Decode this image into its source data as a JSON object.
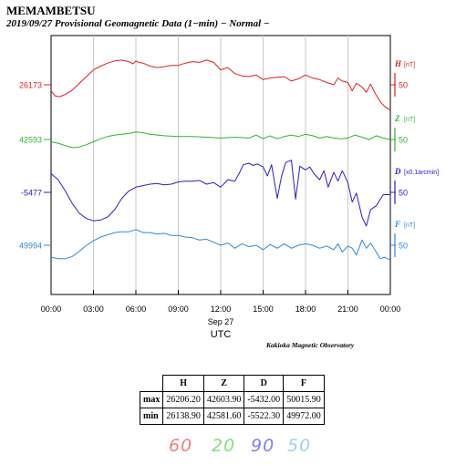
{
  "header": {
    "station": "MEMAMBETSU",
    "subtitle": "2019/09/27  Provisional Geomagnetic Data (1−min)  − Normal −"
  },
  "chart_data": {
    "type": "line",
    "x_ticks": [
      "00:00",
      "03:00",
      "06:00",
      "09:00",
      "12:00",
      "15:00",
      "18:00",
      "21:00",
      "00:00"
    ],
    "date_label": "Sep 27",
    "xlabel": "UTC",
    "xlim_hours": [
      0,
      24
    ],
    "series": [
      {
        "id": "H",
        "name": "H",
        "unit": "[nT]",
        "scale": "50",
        "baseline": "26173",
        "color": "#e02020",
        "x": [
          0,
          0.3,
          0.6,
          1,
          1.5,
          2,
          2.5,
          3,
          3.5,
          4,
          4.5,
          5,
          5.5,
          5.8,
          6,
          6.2,
          6.5,
          7,
          7.5,
          8,
          8.5,
          9,
          9.5,
          10,
          10.5,
          11,
          11.5,
          12,
          12.5,
          13,
          13.5,
          14,
          14.5,
          15,
          15.5,
          16,
          16.5,
          17,
          17.5,
          18,
          18.5,
          19,
          19.5,
          20,
          20.3,
          20.6,
          21,
          21.3,
          21.6,
          22,
          22.3,
          22.6,
          23,
          23.3,
          23.6,
          24
        ],
        "y": [
          26165,
          26158,
          26157,
          26160,
          26166,
          26175,
          26184,
          26193,
          26198,
          26202,
          26205,
          26206,
          26204,
          26201,
          26205,
          26203,
          26202,
          26198,
          26196,
          26197,
          26199,
          26199,
          26202,
          26204,
          26203,
          26206,
          26203,
          26193,
          26196,
          26188,
          26185,
          26184,
          26186,
          26180,
          26182,
          26183,
          26184,
          26178,
          26181,
          26186,
          26182,
          26180,
          26176,
          26173,
          26182,
          26178,
          26176,
          26165,
          26175,
          26170,
          26163,
          26174,
          26159,
          26150,
          26144,
          26139
        ]
      },
      {
        "id": "Z",
        "name": "Z",
        "unit": "[nT]",
        "scale": "50",
        "baseline": "42593",
        "color": "#2db52d",
        "x": [
          0,
          0.5,
          1,
          1.5,
          2,
          2.5,
          3,
          3.5,
          4,
          4.5,
          5,
          5.5,
          6,
          6.5,
          7,
          7.5,
          8,
          9,
          10,
          11,
          12,
          13,
          14,
          14.5,
          15,
          15.5,
          16,
          16.5,
          17,
          17.5,
          18,
          18.5,
          19,
          19.5,
          20,
          20.5,
          21,
          21.5,
          22,
          22.5,
          23,
          23.5,
          24
        ],
        "y": [
          42590,
          42588,
          42585,
          42582,
          42583,
          42586,
          42590,
          42594,
          42597,
          42599,
          42600,
          42601,
          42603,
          42602,
          42600,
          42599,
          42598,
          42597,
          42597,
          42596,
          42595,
          42596,
          42595,
          42599,
          42594,
          42598,
          42594,
          42597,
          42599,
          42597,
          42600,
          42598,
          42595,
          42597,
          42595,
          42594,
          42595,
          42599,
          42596,
          42593,
          42598,
          42595,
          42593
        ]
      },
      {
        "id": "D",
        "name": "D",
        "unit": "[x0.1arcmin]",
        "scale": "50",
        "baseline": "-5477",
        "color": "#2a20c0",
        "x": [
          0,
          0.5,
          1,
          1.5,
          2,
          2.5,
          3,
          3.5,
          4,
          4.5,
          5,
          5.5,
          6,
          6.5,
          7,
          7.5,
          8,
          8.5,
          9,
          9.5,
          10,
          10.5,
          11,
          11.5,
          12,
          12.5,
          13,
          13.3,
          13.6,
          14,
          14.3,
          14.6,
          15,
          15.3,
          15.6,
          16,
          16.3,
          16.6,
          17,
          17.3,
          17.6,
          18,
          18.3,
          18.6,
          19,
          19.3,
          19.6,
          20,
          20.3,
          20.6,
          21,
          21.3,
          21.6,
          22,
          22.3,
          22.6,
          23,
          23.5,
          24
        ],
        "y": [
          -5452,
          -5460,
          -5475,
          -5492,
          -5505,
          -5512,
          -5515,
          -5514,
          -5510,
          -5500,
          -5485,
          -5475,
          -5470,
          -5468,
          -5466,
          -5465,
          -5467,
          -5466,
          -5463,
          -5462,
          -5462,
          -5461,
          -5466,
          -5464,
          -5470,
          -5460,
          -5462,
          -5452,
          -5440,
          -5438,
          -5441,
          -5439,
          -5443,
          -5455,
          -5440,
          -5485,
          -5456,
          -5437,
          -5434,
          -5486,
          -5442,
          -5447,
          -5443,
          -5452,
          -5460,
          -5448,
          -5470,
          -5450,
          -5462,
          -5448,
          -5464,
          -5490,
          -5478,
          -5510,
          -5522,
          -5500,
          -5495,
          -5480,
          -5480
        ]
      },
      {
        "id": "F",
        "name": "F",
        "unit": "[nT]",
        "scale": "50",
        "baseline": "49994",
        "color": "#2a8ad8",
        "x": [
          0,
          0.5,
          1,
          1.5,
          2,
          2.5,
          3,
          3.5,
          4,
          4.5,
          5,
          5.5,
          6,
          6.5,
          7,
          7.5,
          8,
          8.5,
          9,
          9.5,
          10,
          10.5,
          11,
          11.5,
          12,
          12.5,
          13,
          13.5,
          14,
          14.5,
          15,
          15.5,
          16,
          16.5,
          17,
          17.5,
          18,
          18.5,
          19,
          19.5,
          20,
          20.3,
          20.6,
          21,
          21.3,
          21.6,
          22,
          22.3,
          22.6,
          23,
          23.3,
          23.6,
          24
        ],
        "y": [
          49978,
          49976,
          49976,
          49979,
          49986,
          49994,
          50000,
          50005,
          50008,
          50011,
          50012,
          50012,
          50015,
          50011,
          50011,
          50009,
          50010,
          50007,
          50007,
          50005,
          50004,
          50001,
          50002,
          49998,
          49994,
          49997,
          49990,
          49996,
          49992,
          49994,
          49988,
          49995,
          49990,
          49996,
          49990,
          49994,
          49996,
          49994,
          49990,
          49993,
          49988,
          49996,
          49985,
          49993,
          49990,
          49981,
          50001,
          49990,
          49997,
          49985,
          49976,
          49978,
          49974
        ]
      }
    ]
  },
  "credit": "Kakioka Magnetic Observatory",
  "stats": {
    "headers": [
      "H",
      "Z",
      "D",
      "F"
    ],
    "rows": [
      {
        "label": "max",
        "values": [
          "26206.20",
          "42603.90",
          "-5432.00",
          "50015.90"
        ]
      },
      {
        "label": "min",
        "values": [
          "26138.90",
          "42581.60",
          "-5522.30",
          "49972.00"
        ]
      }
    ]
  },
  "handwritten": [
    {
      "text": "60",
      "color": "#f08080"
    },
    {
      "text": "20",
      "color": "#86e080"
    },
    {
      "text": "90",
      "color": "#7f7fe8"
    },
    {
      "text": "50",
      "color": "#9cd4f2"
    }
  ]
}
